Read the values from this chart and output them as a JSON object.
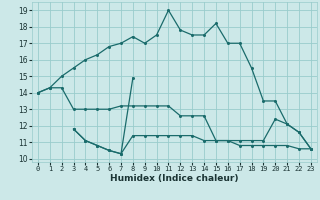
{
  "xlabel": "Humidex (Indice chaleur)",
  "bg_color": "#cce8e8",
  "grid_color": "#99cccc",
  "line_color": "#1a6b6b",
  "xlim": [
    -0.5,
    23.5
  ],
  "ylim": [
    9.8,
    19.5
  ],
  "xticks": [
    0,
    1,
    2,
    3,
    4,
    5,
    6,
    7,
    8,
    9,
    10,
    11,
    12,
    13,
    14,
    15,
    16,
    17,
    18,
    19,
    20,
    21,
    22,
    23
  ],
  "yticks": [
    10,
    11,
    12,
    13,
    14,
    15,
    16,
    17,
    18,
    19
  ],
  "line_upper_x": [
    0,
    1,
    2,
    3,
    4,
    5,
    6,
    7,
    8,
    9,
    10,
    11,
    12,
    13,
    14,
    15,
    16,
    17,
    18,
    19,
    20,
    21,
    22,
    23
  ],
  "line_upper_y": [
    14.0,
    14.3,
    15.0,
    15.5,
    16.0,
    16.3,
    16.8,
    17.0,
    17.4,
    17.0,
    17.5,
    19.0,
    17.8,
    17.5,
    17.5,
    18.2,
    17.0,
    17.0,
    15.5,
    13.5,
    13.5,
    12.1,
    11.6,
    10.6
  ],
  "line_mid_x": [
    0,
    1,
    2,
    3,
    4,
    5,
    6,
    7,
    8,
    9,
    10,
    11,
    12,
    13,
    14,
    15,
    16,
    17,
    18,
    19,
    20,
    21,
    22,
    23
  ],
  "line_mid_y": [
    14.0,
    14.3,
    14.3,
    13.0,
    13.0,
    13.0,
    13.0,
    13.2,
    13.2,
    13.2,
    13.2,
    13.2,
    12.6,
    12.6,
    12.6,
    11.1,
    11.1,
    11.1,
    11.1,
    11.1,
    12.4,
    12.1,
    11.6,
    10.6
  ],
  "line_spike_x": [
    3,
    4,
    5,
    6,
    7,
    8
  ],
  "line_spike_y": [
    11.8,
    11.1,
    10.8,
    10.5,
    10.3,
    14.9
  ],
  "line_low_x": [
    3,
    4,
    5,
    6,
    7,
    8,
    9,
    10,
    11,
    12,
    13,
    14,
    15,
    16,
    17,
    18,
    19,
    20,
    21,
    22,
    23
  ],
  "line_low_y": [
    11.8,
    11.1,
    10.8,
    10.5,
    10.3,
    11.4,
    11.4,
    11.4,
    11.4,
    11.4,
    11.4,
    11.1,
    11.1,
    11.1,
    10.8,
    10.8,
    10.8,
    10.8,
    10.8,
    10.6,
    10.6
  ]
}
